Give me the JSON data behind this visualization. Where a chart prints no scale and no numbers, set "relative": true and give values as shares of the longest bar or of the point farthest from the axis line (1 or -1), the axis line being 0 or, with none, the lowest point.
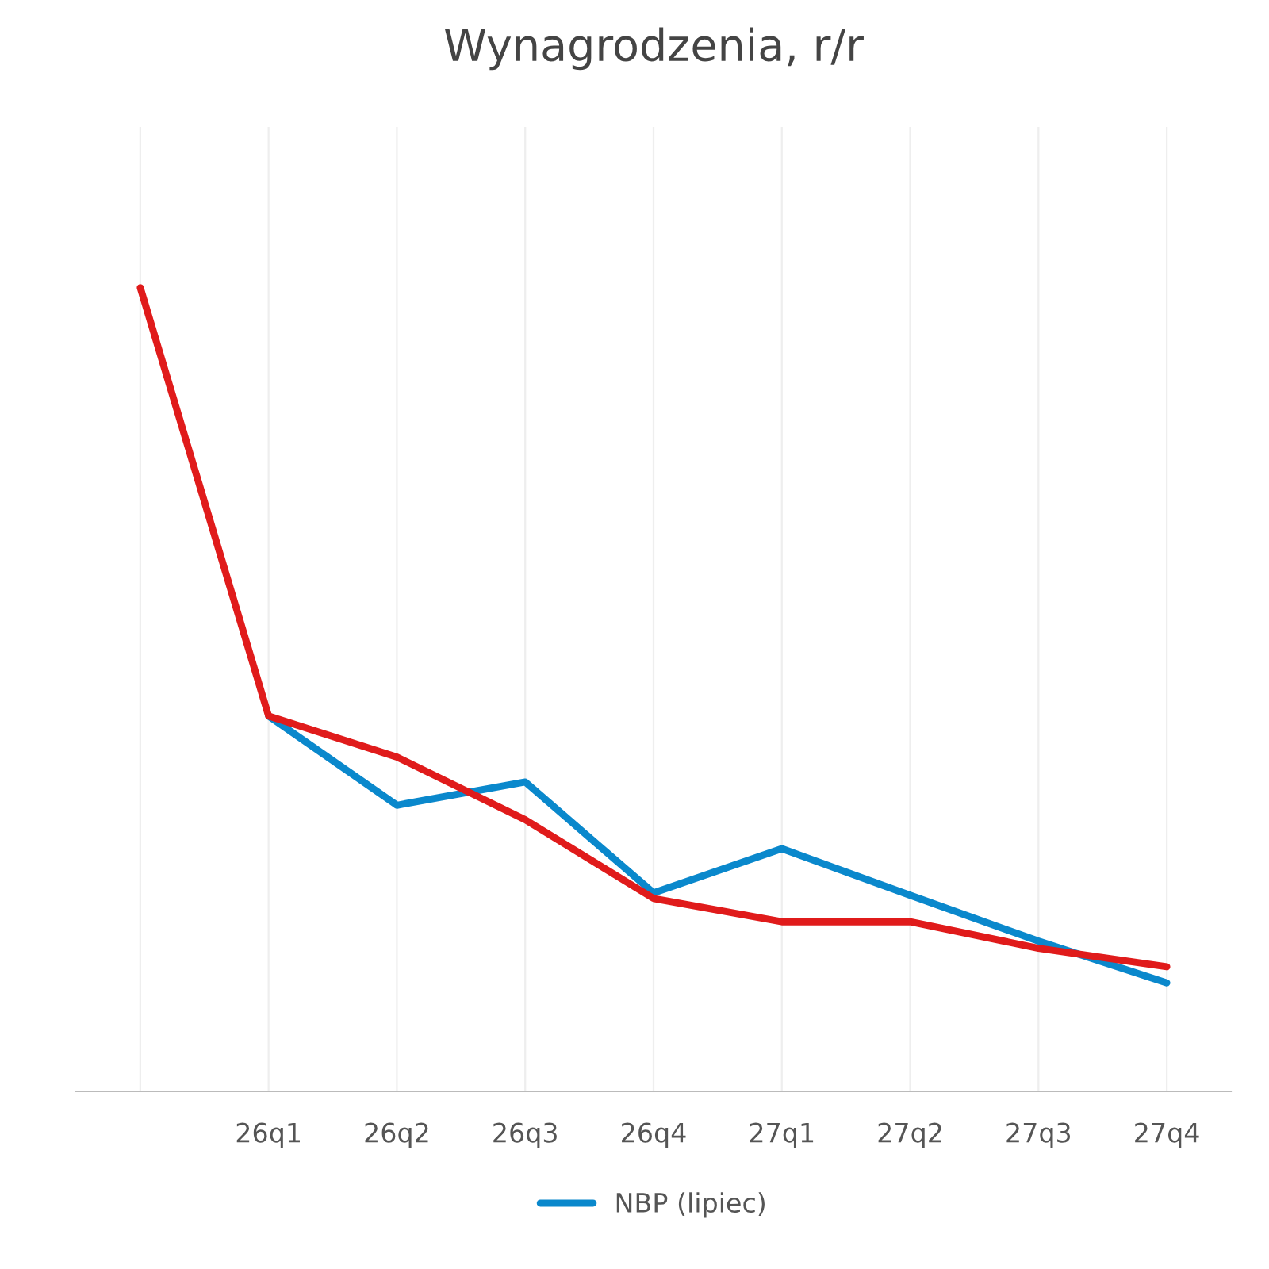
{
  "chart_data": {
    "type": "line",
    "title": "Wynagrodzenia, r/r",
    "relative": true,
    "categories": [
      null,
      "26q1",
      "26q2",
      "26q3",
      "26q4",
      "27q1",
      "27q2",
      "27q3",
      "27q4"
    ],
    "series": [
      {
        "name": "NBP (lipiec)",
        "color": "#0a88cc",
        "values": [
          null,
          0.467,
          0.356,
          0.385,
          0.247,
          0.302,
          0.244,
          0.187,
          0.135
        ]
      },
      {
        "color": "#e01b1b",
        "values": [
          1.0,
          0.467,
          0.416,
          0.338,
          0.24,
          0.211,
          0.211,
          0.178,
          0.155
        ]
      }
    ],
    "grid": true,
    "legend": "bottom",
    "marker": "none",
    "line_style": "solid"
  }
}
